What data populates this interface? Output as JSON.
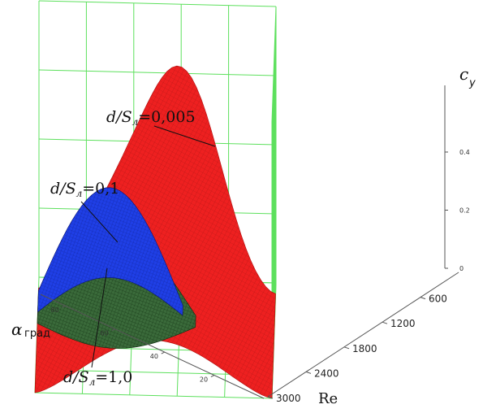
{
  "chart_data": {
    "type": "surface3d",
    "title": "",
    "z_axis": {
      "label": "c",
      "label_sub": "y",
      "ticks": [
        "0",
        "0.2",
        "0.4"
      ],
      "tick_values": [
        0,
        0.2,
        0.4
      ],
      "range": [
        0,
        0.6
      ]
    },
    "re_axis": {
      "label": "Re",
      "ticks": [
        "600",
        "1200",
        "1800",
        "2400",
        "3000"
      ],
      "tick_values": [
        600,
        1200,
        1800,
        2400,
        3000
      ],
      "range": [
        0,
        3000
      ]
    },
    "alpha_axis": {
      "label": "α",
      "label_sub": "град",
      "ticks": [
        "80",
        "60",
        "40",
        "20"
      ],
      "tick_values": [
        80,
        60,
        40,
        20
      ],
      "range": [
        0,
        90
      ]
    },
    "grid": true,
    "series": [
      {
        "label_prefix": "d",
        "label_mid": "S",
        "label_sub": "л",
        "label_value": "=0,005",
        "color": "#ee1c1c",
        "peak": 0.56
      },
      {
        "label_prefix": "d",
        "label_mid": "S",
        "label_sub": "л",
        "label_value": "=0,1",
        "color": "#1d35e0",
        "peak": 0.1
      },
      {
        "label_prefix": "d",
        "label_mid": "S",
        "label_sub": "л",
        "label_value": "=1,0",
        "color": "#2e5d2e",
        "peak": 0.07
      }
    ]
  },
  "colors": {
    "grid": "#5de05d",
    "axis": "#555555"
  }
}
